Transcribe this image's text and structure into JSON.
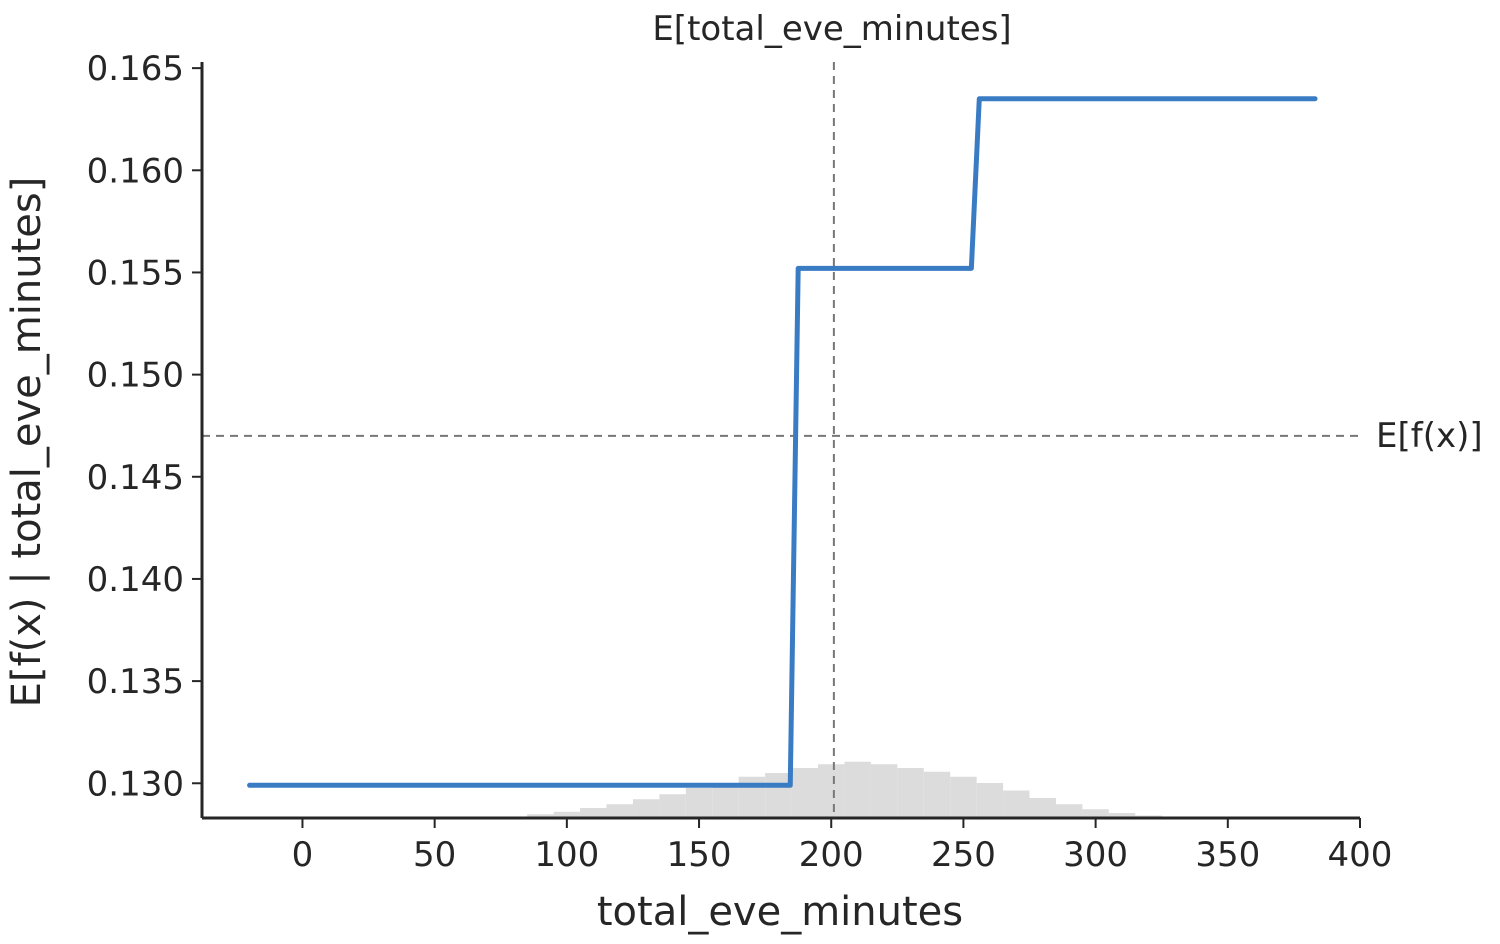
{
  "chart_data": {
    "type": "line",
    "title": "E[total_eve_minutes]",
    "xlabel": "total_eve_minutes",
    "ylabel": "E[f(x) | total_eve_minutes]",
    "xlim": [
      -38,
      400
    ],
    "ylim": [
      0.1283,
      0.1653
    ],
    "xticks": [
      0,
      50,
      100,
      150,
      200,
      250,
      300,
      350,
      400
    ],
    "yticks": [
      0.13,
      0.135,
      0.14,
      0.145,
      0.15,
      0.155,
      0.16,
      0.165
    ],
    "xtick_labels": [
      "0",
      "50",
      "100",
      "150",
      "200",
      "250",
      "300",
      "350",
      "400"
    ],
    "ytick_labels": [
      "0.130",
      "0.135",
      "0.140",
      "0.145",
      "0.150",
      "0.155",
      "0.160",
      "0.165"
    ],
    "series": [
      {
        "x": [
          -20,
          184.5,
          187.5,
          253,
          256,
          383
        ],
        "y": [
          0.1299,
          0.1299,
          0.1552,
          0.1552,
          0.1635,
          0.1635
        ],
        "color": "#3a7cc4"
      }
    ],
    "reference_lines": {
      "expected_feature_value": 201,
      "expected_prediction": 0.147,
      "expected_prediction_label": "E[f(x)]",
      "color": "#777777",
      "style": "dashed"
    },
    "histogram": {
      "color": "#dcdcdc",
      "bin_centers": [
        90,
        100,
        110,
        120,
        130,
        140,
        150,
        160,
        170,
        180,
        190,
        200,
        210,
        220,
        230,
        240,
        250,
        260,
        270,
        280,
        290,
        300,
        310,
        320
      ],
      "heights": [
        0.0003,
        0.0005,
        0.0008,
        0.0011,
        0.0015,
        0.0019,
        0.0024,
        0.0028,
        0.0033,
        0.0036,
        0.004,
        0.0043,
        0.0045,
        0.0043,
        0.004,
        0.0037,
        0.0033,
        0.0028,
        0.0022,
        0.0016,
        0.0011,
        0.0007,
        0.0004,
        0.0002
      ]
    },
    "grid": false
  }
}
